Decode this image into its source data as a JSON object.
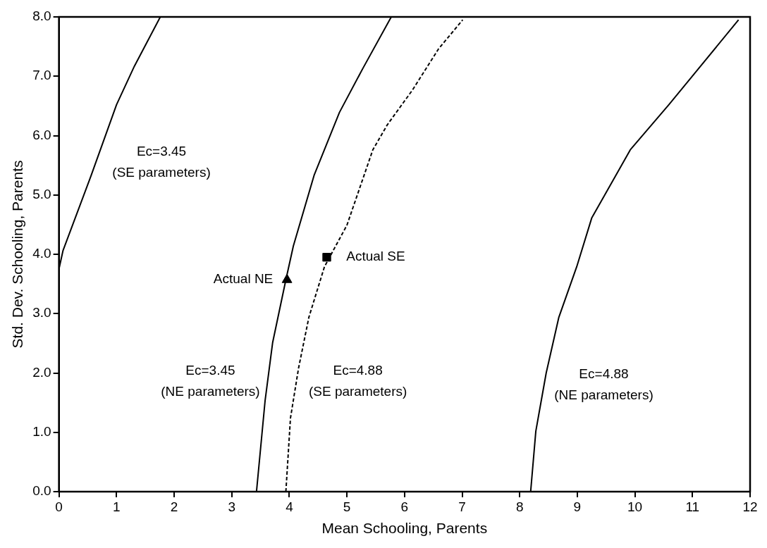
{
  "chart_data": {
    "type": "line",
    "xlabel": "Mean Schooling, Parents",
    "ylabel": "Std. Dev. Schooling, Parents",
    "xlim": [
      0,
      12
    ],
    "xticks": [
      0,
      1,
      2,
      3,
      4,
      5,
      6,
      7,
      8,
      9,
      10,
      11,
      12
    ],
    "ylim": [
      0,
      8
    ],
    "yticks": [
      {
        "value": 0,
        "label": "0.0"
      },
      {
        "value": 1,
        "label": "1.0"
      },
      {
        "value": 2,
        "label": "2.0"
      },
      {
        "value": 3,
        "label": "3.0"
      },
      {
        "value": 4,
        "label": "4.0"
      },
      {
        "value": 5,
        "label": "5.0"
      },
      {
        "value": 6,
        "label": "6.0"
      },
      {
        "value": 7,
        "label": "7.0"
      },
      {
        "value": 8,
        "label": "8.0"
      }
    ],
    "grid": false,
    "legend": false,
    "series": [
      {
        "color": "#000000",
        "marker": "none",
        "line_style": "solid",
        "x": [
          0,
          0.07,
          0.56,
          1.0,
          1.31,
          1.76
        ],
        "values": [
          3.75,
          4.06,
          5.33,
          6.52,
          7.17,
          8.0
        ]
      },
      {
        "color": "#000000",
        "marker": "none",
        "line_style": "solid",
        "x": [
          3.43,
          3.58,
          3.71,
          3.94,
          4.07,
          4.43,
          4.87,
          5.27,
          5.77
        ],
        "values": [
          0,
          1.54,
          2.51,
          3.57,
          4.14,
          5.33,
          6.39,
          7.12,
          8.0
        ]
      },
      {
        "color": "#000000",
        "marker": "none",
        "line_style": "dashed",
        "x": [
          3.94,
          4.02,
          4.16,
          4.34,
          4.61,
          5.0,
          5.45,
          5.7,
          6.14,
          6.59,
          7.01
        ],
        "values": [
          0,
          1.24,
          2.08,
          2.94,
          3.79,
          4.49,
          5.76,
          6.18,
          6.77,
          7.46,
          7.95
        ]
      },
      {
        "color": "#000000",
        "marker": "none",
        "line_style": "solid",
        "x": [
          8.19,
          8.28,
          8.46,
          8.68,
          8.99,
          9.25,
          9.92,
          10.59,
          11.03,
          11.8
        ],
        "values": [
          0,
          1.02,
          2.0,
          2.94,
          3.79,
          4.61,
          5.76,
          6.52,
          7.04,
          7.95
        ]
      },
      {
        "type": "scatter",
        "color": "#000000",
        "marker": "triangle",
        "x": [
          3.96
        ],
        "values": [
          3.57
        ]
      },
      {
        "type": "scatter",
        "color": "#000000",
        "marker": "square",
        "x": [
          4.65
        ],
        "values": [
          3.95
        ]
      }
    ],
    "annotations": [
      "Ec=3.45\n(SE parameters)",
      "Ec=3.45\n(NE parameters)",
      "Ec=4.88\n(SE parameters)",
      "Ec=4.88\n(NE parameters)",
      "Actual NE",
      "Actual SE"
    ]
  }
}
